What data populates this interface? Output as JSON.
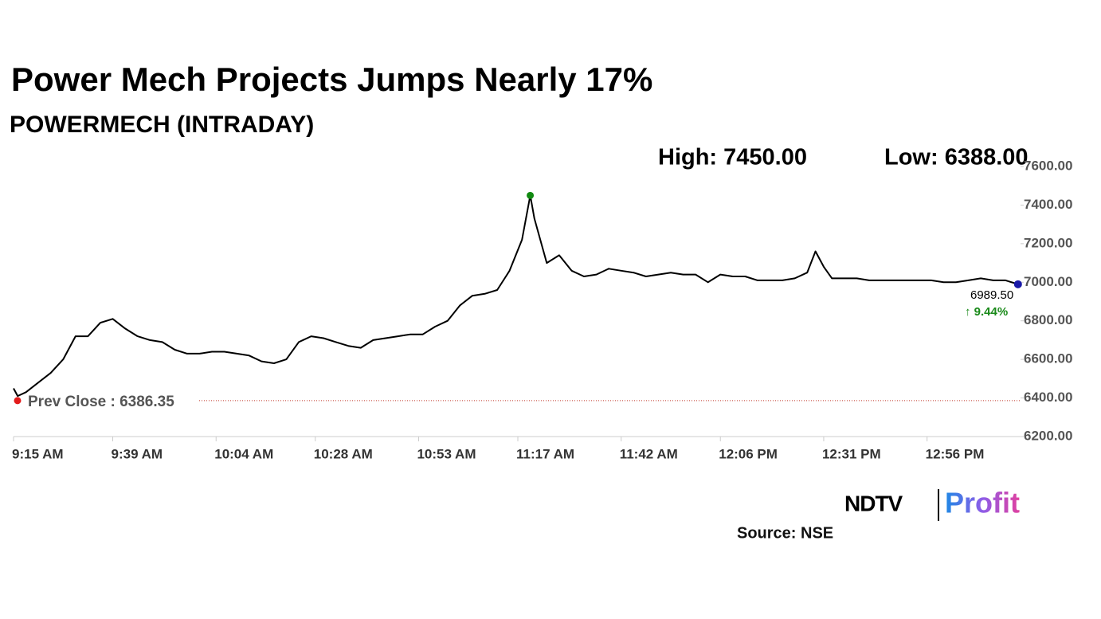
{
  "chart_data": {
    "type": "line",
    "title": "Power Mech Projects Jumps Nearly 17%",
    "subtitle": "POWERMECH (INTRADAY)",
    "high_label": "High: 7450.00",
    "low_label": "Low: 6388.00",
    "prev_close": 6386.35,
    "prev_close_label": "Prev Close : 6386.35",
    "last_label": "6989.50",
    "change_label": "↑ 9.44%",
    "source": "Source: NSE",
    "logo": [
      "NDTV",
      "Profit"
    ],
    "x": [
      "09:15",
      "09:16",
      "09:18",
      "09:21",
      "09:24",
      "09:27",
      "09:30",
      "09:33",
      "09:36",
      "09:39",
      "09:42",
      "09:45",
      "09:48",
      "09:51",
      "09:54",
      "09:57",
      "10:00",
      "10:03",
      "10:06",
      "10:09",
      "10:12",
      "10:15",
      "10:18",
      "10:21",
      "10:24",
      "10:27",
      "10:30",
      "10:33",
      "10:36",
      "10:39",
      "10:42",
      "10:45",
      "10:48",
      "10:51",
      "10:54",
      "10:57",
      "11:00",
      "11:03",
      "11:06",
      "11:09",
      "11:12",
      "11:15",
      "11:18",
      "11:20",
      "11:21",
      "11:24",
      "11:27",
      "11:30",
      "11:33",
      "11:36",
      "11:39",
      "11:42",
      "11:45",
      "11:48",
      "11:51",
      "11:54",
      "11:57",
      "12:00",
      "12:03",
      "12:06",
      "12:09",
      "12:12",
      "12:15",
      "12:18",
      "12:21",
      "12:24",
      "12:27",
      "12:29",
      "12:31",
      "12:33",
      "12:36",
      "12:39",
      "12:42",
      "12:45",
      "12:48",
      "12:51",
      "12:54",
      "12:57",
      "13:00",
      "13:03",
      "13:06",
      "13:09",
      "13:12",
      "13:15",
      "13:18"
    ],
    "values": [
      6450,
      6410,
      6430,
      6480,
      6530,
      6600,
      6720,
      6720,
      6790,
      6810,
      6760,
      6720,
      6700,
      6690,
      6650,
      6630,
      6630,
      6640,
      6640,
      6630,
      6620,
      6590,
      6580,
      6600,
      6690,
      6720,
      6710,
      6690,
      6670,
      6660,
      6700,
      6710,
      6720,
      6730,
      6730,
      6770,
      6800,
      6880,
      6930,
      6940,
      6960,
      7060,
      7220,
      7450,
      7330,
      7100,
      7140,
      7060,
      7030,
      7040,
      7070,
      7060,
      7050,
      7030,
      7040,
      7050,
      7040,
      7040,
      7000,
      7040,
      7030,
      7030,
      7010,
      7010,
      7010,
      7020,
      7050,
      7160,
      7080,
      7020,
      7020,
      7020,
      7010,
      7010,
      7010,
      7010,
      7010,
      7010,
      7000,
      7000,
      7010,
      7020,
      7010,
      7010,
      6989.5
    ],
    "color": "#000000",
    "xlim": [
      "09:15",
      "13:19"
    ],
    "xticks": [
      {
        "value": "09:15",
        "label": "9:15 AM"
      },
      {
        "value": "09:39",
        "label": "9:39 AM"
      },
      {
        "value": "10:04",
        "label": "10:04 AM"
      },
      {
        "value": "10:28",
        "label": "10:28 AM"
      },
      {
        "value": "10:53",
        "label": "10:53 AM"
      },
      {
        "value": "11:17",
        "label": "11:17 AM"
      },
      {
        "value": "11:42",
        "label": "11:42 AM"
      },
      {
        "value": "12:06",
        "label": "12:06 PM"
      },
      {
        "value": "12:31",
        "label": "12:31 PM"
      },
      {
        "value": "12:56",
        "label": "12:56 PM"
      }
    ],
    "ylim": [
      6200,
      7600
    ],
    "yticks": [
      {
        "value": 6200,
        "label": "6200.00"
      },
      {
        "value": 6400,
        "label": "6400.00"
      },
      {
        "value": 6600,
        "label": "6600.00"
      },
      {
        "value": 6800,
        "label": "6800.00"
      },
      {
        "value": 7000,
        "label": "7000.00"
      },
      {
        "value": 7200,
        "label": "7200.00"
      },
      {
        "value": 7400,
        "label": "7400.00"
      },
      {
        "value": 7600,
        "label": "7600.00"
      }
    ]
  }
}
